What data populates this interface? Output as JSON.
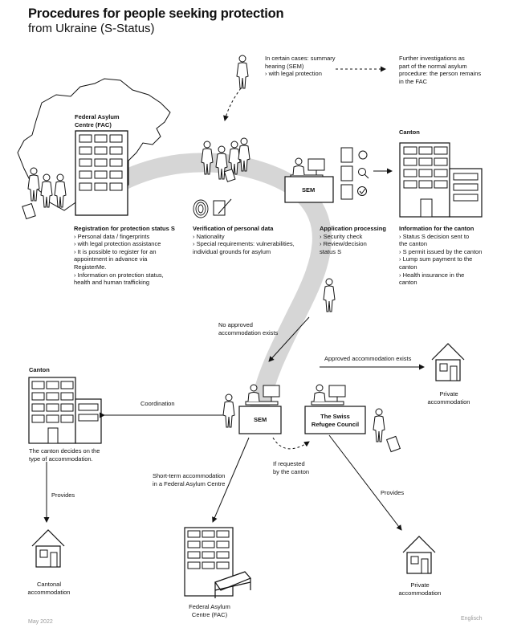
{
  "title": "Procedures for people seeking protection",
  "subtitle": "from Ukraine (S-Status)",
  "footer": {
    "date": "May 2022",
    "language": "Englisch"
  },
  "labels": {
    "fac_building": "Federal Asylum\nCentre (FAC)",
    "canton_top": "Canton",
    "canton_bottom": "Canton",
    "sem_top": "SEM",
    "sem_bottom": "SEM",
    "refugee_council": "The Swiss\nRefugee Council",
    "fac_bottom": "Federal Asylum\nCentre (FAC)",
    "private_acc_right": "Private\naccommodation",
    "private_acc_bottom": "Private\naccommodation",
    "cantonal_acc": "Cantonal\naccommodation"
  },
  "notes": {
    "summary_hearing": "In certain cases: summary\nhearing (SEM)\n› with legal protection",
    "further_investigations": "Further investigations as\npart of the normal asylum\nprocedure: the person remains\nin the FAC",
    "no_approved": "No approved\naccommodation exists",
    "approved_exists": "Approved accommodation exists",
    "coordination": "Coordination",
    "canton_decides": "The canton decides on the\ntype of accommodation.",
    "provides_left": "Provides",
    "provides_right": "Provides",
    "short_term": "Short-term accommodation\nin a Federal Asylum Centre",
    "if_requested": "If requested\nby the canton"
  },
  "steps": [
    {
      "title": "Registration for protection status S",
      "items": [
        "› Personal data / fingerprints",
        "› with legal protection assistance",
        "› It is possible to register for an\n   appointment in advance via\n   RegisterMe.",
        "› Information on protection status,\n   health and human trafficking"
      ]
    },
    {
      "title": "Verification of personal data",
      "items": [
        "› Nationality",
        "› Special requirements: vulnerabilities,\n   individual grounds for asylum"
      ]
    },
    {
      "title": "Application processing",
      "items": [
        "› Security check",
        "› Review/decision\n   status S"
      ]
    },
    {
      "title": "Information for the canton",
      "items": [
        "› Status S decision sent to\n   the canton",
        "› S permit issued by the canton",
        "› Lump sum payment to the\n   canton",
        "› Health insurance in the\n   canton"
      ]
    }
  ],
  "icons": [
    "switzerland-map-icon",
    "fac-building-icon",
    "person-icon",
    "fingerprint-icon",
    "pen-icon",
    "document-icon",
    "refresh-icon",
    "magnifier-icon",
    "checkmark-icon",
    "arrow-icon",
    "house-icon",
    "bed-icon",
    "suitcase-icon",
    "desk-computer-icon"
  ],
  "colors": {
    "path": "#d8d8d8",
    "ink": "#111111",
    "muted": "#9a9a9a"
  }
}
